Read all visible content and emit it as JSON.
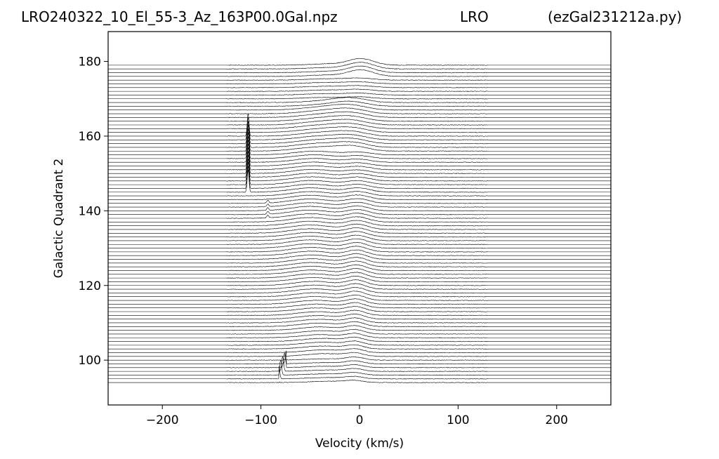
{
  "header": {
    "left": "LRO240322_10_El_55-3_Az_163P00.0Gal.npz",
    "center": "LRO",
    "right": "(ezGal231212a.py)"
  },
  "chart_data": {
    "type": "line",
    "title": "",
    "xlabel": "Velocity (km/s)",
    "ylabel": "Galactic Quadrant 2",
    "xlim": [
      -255,
      255
    ],
    "ylim": [
      88,
      188
    ],
    "xticks": [
      -200,
      -100,
      0,
      100,
      200
    ],
    "yticks": [
      100,
      120,
      140,
      160,
      180
    ],
    "grid": false,
    "line_color": "#000000",
    "trace_count": 86,
    "trace_start_longitude": 94,
    "trace_end_longitude": 179,
    "trace_spacing": 1,
    "series_description_values": {
      "main_emission_center_kms": [
        -10,
        5
      ],
      "spike_features": [
        {
          "longitude_range": [
            145,
            160
          ],
          "velocity_kms": -113
        },
        {
          "longitude_range": [
            94,
            99
          ],
          "velocity_kms": -78
        }
      ]
    }
  }
}
